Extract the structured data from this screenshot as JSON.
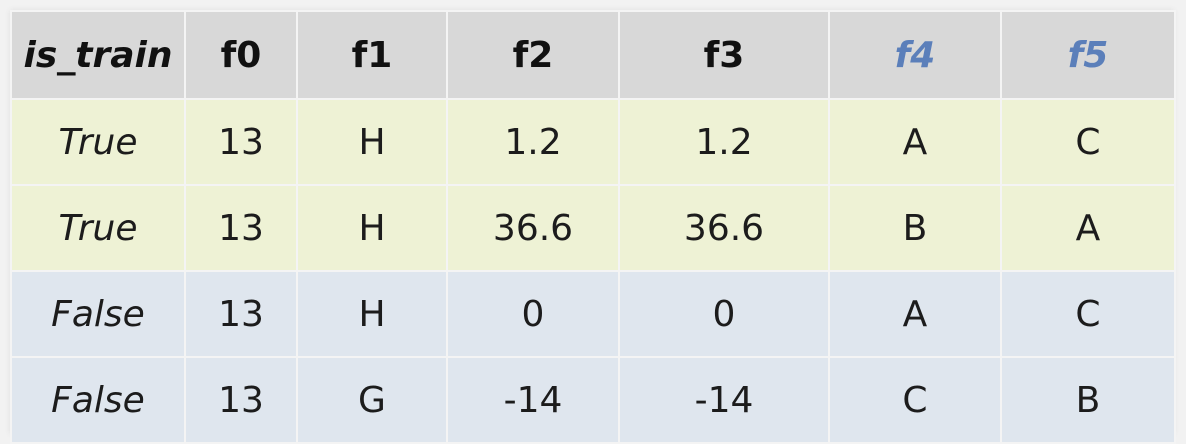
{
  "table": {
    "columns": [
      {
        "label": "is_train",
        "style": "italic"
      },
      {
        "label": "f0",
        "style": "normal"
      },
      {
        "label": "f1",
        "style": "normal"
      },
      {
        "label": "f2",
        "style": "normal"
      },
      {
        "label": "f3",
        "style": "normal"
      },
      {
        "label": "f4",
        "style": "blue"
      },
      {
        "label": "f5",
        "style": "blue"
      }
    ],
    "rows": [
      {
        "group": "train",
        "cells": [
          "True",
          "13",
          "H",
          "1.2",
          "1.2",
          "A",
          "C"
        ]
      },
      {
        "group": "train",
        "cells": [
          "True",
          "13",
          "H",
          "36.6",
          "36.6",
          "B",
          "A"
        ]
      },
      {
        "group": "test",
        "cells": [
          "False",
          "13",
          "H",
          "0",
          "0",
          "A",
          "C"
        ]
      },
      {
        "group": "test",
        "cells": [
          "False",
          "13",
          "G",
          "-14",
          "-14",
          "C",
          "B"
        ]
      }
    ]
  },
  "colors": {
    "header_bg": "#d8d8d8",
    "train_row_bg": "#eef2d5",
    "test_row_bg": "#dfe6ee",
    "accent_blue": "#5b7fba"
  }
}
